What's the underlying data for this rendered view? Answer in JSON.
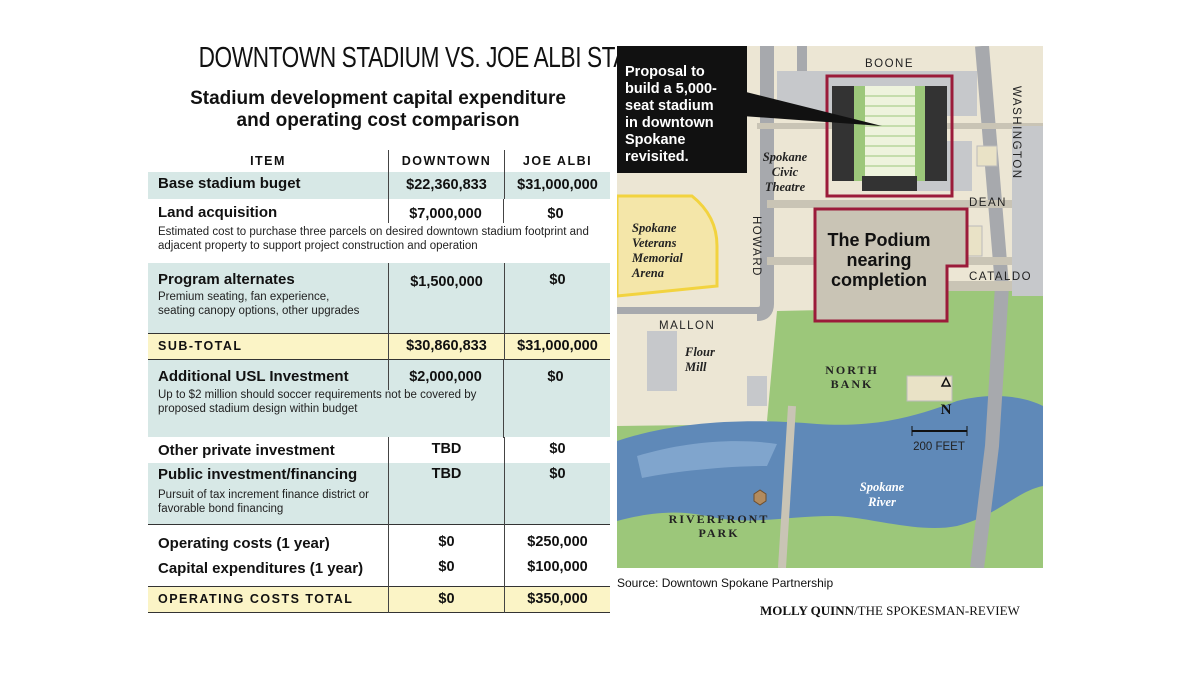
{
  "headline": "DOWNTOWN STADIUM VS. JOE ALBI STADIUM",
  "subhead_line1": "Stadium development capital expenditure",
  "subhead_line2": "and operating cost comparison",
  "chart_data": {
    "type": "table",
    "columns": [
      "ITEM",
      "DOWNTOWN",
      "JOE ALBI"
    ],
    "rows": [
      {
        "item": "Base stadium buget",
        "note": "",
        "downtown": "$22,360,833",
        "joe_albi": "$31,000,000"
      },
      {
        "item": "Land acquisition",
        "note": "Estimated cost to purchase three parcels on desired downtown stadium footprint and adjacent property to support project construction and operation",
        "downtown": "$7,000,000",
        "joe_albi": "$0"
      },
      {
        "item": "Program alternates",
        "note": "Premium seating, fan experience, seating canopy options, other upgrades",
        "downtown": "$1,500,000",
        "joe_albi": "$0"
      },
      {
        "item": "SUB-TOTAL",
        "note": "",
        "downtown": "$30,860,833",
        "joe_albi": "$31,000,000"
      },
      {
        "item": "Additional USL Investment",
        "note": "Up to $2 million should soccer requirements not be covered by proposed stadium design within budget",
        "downtown": "$2,000,000",
        "joe_albi": "$0"
      },
      {
        "item": "Other private investment",
        "note": "",
        "downtown": "TBD",
        "joe_albi": "$0"
      },
      {
        "item": "Public investment/financing",
        "note": "Pursuit of tax increment finance district or favorable bond financing",
        "downtown": "TBD",
        "joe_albi": "$0"
      },
      {
        "item": "Operating costs (1 year)",
        "note": "",
        "downtown": "$0",
        "joe_albi": "$250,000"
      },
      {
        "item": "Capital expenditures (1 year)",
        "note": "",
        "downtown": "$0",
        "joe_albi": "$100,000"
      },
      {
        "item": "OPERATING COSTS TOTAL",
        "note": "",
        "downtown": "$0",
        "joe_albi": "$350,000"
      }
    ]
  },
  "map": {
    "callout": [
      "Proposal to",
      "build a 5,000-",
      "seat stadium",
      "in downtown",
      "Spokane",
      "revisited."
    ],
    "podium": [
      "The Podium",
      "nearing",
      "completion"
    ],
    "streets": {
      "boone": "BOONE",
      "washington": "WASHINGTON",
      "dean": "DEAN",
      "howard": "HOWARD",
      "cataldo": "CATALDO",
      "mallon": "MALLON"
    },
    "places": {
      "civic_theatre": [
        "Spokane",
        "Civic",
        "Theatre"
      ],
      "arena": [
        "Spokane",
        "Veterans",
        "Memorial",
        "Arena"
      ],
      "flour_mill": [
        "Flour",
        "Mill"
      ],
      "north_bank": [
        "NORTH",
        "BANK"
      ],
      "river": [
        "Spokane",
        "River"
      ],
      "riverfront": [
        "RIVERFRONT",
        "PARK"
      ]
    },
    "north": "N",
    "scale": "200 FEET"
  },
  "source": "Source: Downtown Spokane Partnership",
  "credit_name": "MOLLY QUINN",
  "credit_org": "/THE SPOKESMAN-REVIEW",
  "colors": {
    "teal": "#d7e8e6",
    "yellow": "#fbf4c6",
    "podium": "#9b1b3a",
    "river": "#5f89b8",
    "park": "#9cc77a"
  }
}
